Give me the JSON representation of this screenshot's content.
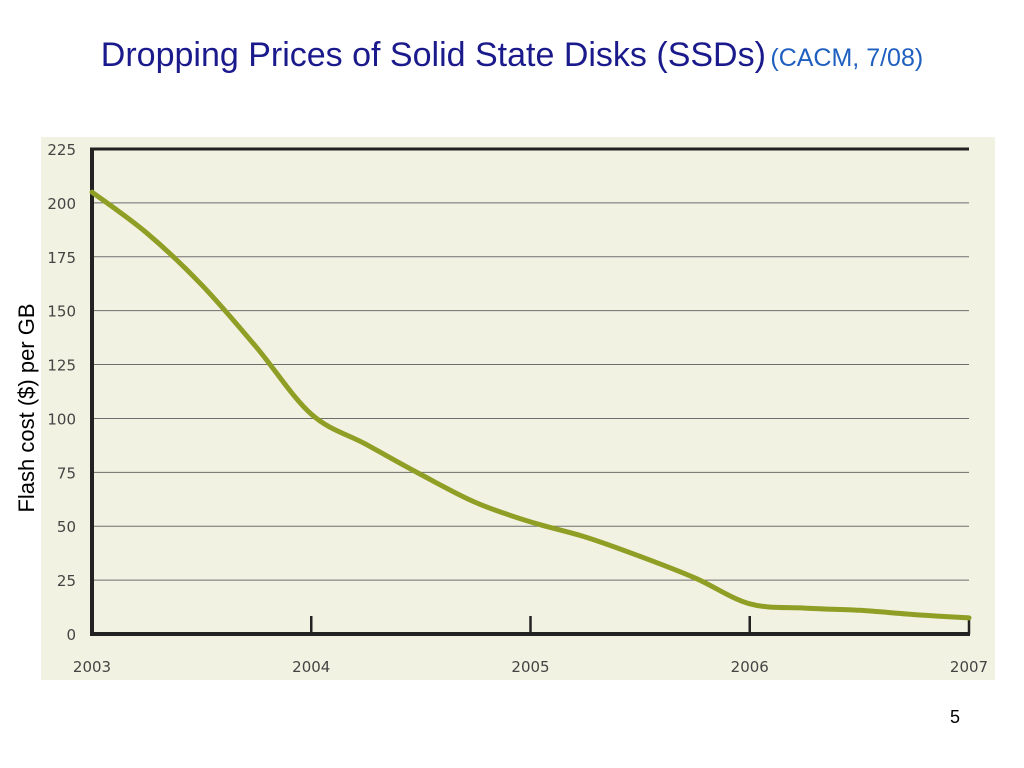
{
  "slide": {
    "title": "Dropping Prices of Solid State Disks (SSDs)",
    "source": "(CACM, 7/08)",
    "page_number": "5"
  },
  "colors": {
    "title": "#1a1a8c",
    "source": "#1f5fbf",
    "plot_background": "#f2f2e2",
    "line": "#8f9f25",
    "gridline": "#6e6e6e",
    "axis": "#222222"
  },
  "chart_data": {
    "type": "line",
    "title": "",
    "xlabel": "",
    "ylabel": "Flash cost ($) per GB",
    "xlim": [
      2003,
      2007
    ],
    "ylim": [
      0,
      225
    ],
    "x_ticks": [
      "2003",
      "2004",
      "2005",
      "2006",
      "2007"
    ],
    "y_ticks": [
      "0",
      "25",
      "50",
      "75",
      "100",
      "125",
      "150",
      "175",
      "200",
      "225"
    ],
    "grid": "horizontal",
    "series": [
      {
        "x": [
          2003.0,
          2003.25,
          2003.5,
          2003.75,
          2004.0,
          2004.25,
          2004.5,
          2004.75,
          2005.0,
          2005.25,
          2005.5,
          2005.75,
          2006.0,
          2006.25,
          2006.5,
          2006.75,
          2007.0
        ],
        "values": [
          205,
          186,
          162,
          133,
          102,
          88,
          74,
          61,
          52,
          45,
          36,
          26,
          14,
          12,
          11,
          9,
          7.5
        ]
      }
    ]
  }
}
